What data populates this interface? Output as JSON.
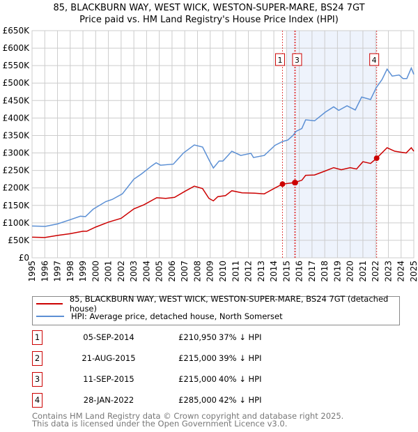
{
  "chart_data": {
    "type": "line",
    "title": "85, BLACKBURN WAY, WEST WICK, WESTON-SUPER-MARE, BS24 7GT",
    "subtitle": "Price paid vs. HM Land Registry's House Price Index (HPI)",
    "xlim": [
      1995,
      2025
    ],
    "ylim": [
      0,
      650000
    ],
    "x_ticks": [
      "1995",
      "1996",
      "1997",
      "1998",
      "1999",
      "2000",
      "2001",
      "2002",
      "2003",
      "2004",
      "2005",
      "2006",
      "2007",
      "2008",
      "2009",
      "2010",
      "2011",
      "2012",
      "2013",
      "2014",
      "2015",
      "2016",
      "2017",
      "2018",
      "2019",
      "2020",
      "2021",
      "2022",
      "2023",
      "2024",
      "2025"
    ],
    "y_ticks": [
      "£0",
      "£50K",
      "£100K",
      "£150K",
      "£200K",
      "£250K",
      "£300K",
      "£350K",
      "£400K",
      "£450K",
      "£500K",
      "£550K",
      "£600K",
      "£650K"
    ],
    "grid": true,
    "series": [
      {
        "name": "85, BLACKBURN WAY, WEST WICK, WESTON-SUPER-MARE, BS24 7GT (detached house)",
        "color": "#cc0000",
        "x": [
          1995,
          1996,
          1997,
          1998,
          1999,
          1999.3,
          2000,
          2001,
          2002,
          2003,
          2003.8,
          2004.8,
          2005.5,
          2006.2,
          2007,
          2007.75,
          2008.4,
          2008.9,
          2009.25,
          2009.6,
          2010.2,
          2010.7,
          2011.5,
          2012.5,
          2013.25,
          2014.1,
          2014.68,
          2015.6,
          2016.2,
          2016.5,
          2017.2,
          2018,
          2018.7,
          2019.3,
          2020,
          2020.5,
          2021,
          2021.6,
          2022.08,
          2022.9,
          2023.5,
          2024,
          2024.4,
          2024.8,
          2025
        ],
        "y": [
          59000,
          58000,
          64000,
          69000,
          76000,
          76000,
          88000,
          102000,
          113000,
          140000,
          152000,
          172000,
          170000,
          173000,
          190000,
          205000,
          198000,
          170000,
          163000,
          175000,
          178000,
          192000,
          186000,
          185000,
          183000,
          200000,
          211000,
          215000,
          222000,
          236000,
          237000,
          248000,
          258000,
          252000,
          258000,
          254000,
          275000,
          270000,
          285000,
          315000,
          305000,
          302000,
          300000,
          315000,
          305000
        ]
      },
      {
        "name": "HPI: Average price, detached house, North Somerset",
        "color": "#5b8fd4",
        "x": [
          1995,
          1996.05,
          1997,
          1998,
          1998.8,
          1999.2,
          1999.8,
          2000.8,
          2001.3,
          2002.1,
          2003,
          2003.6,
          2004.4,
          2004.75,
          2005.1,
          2006.1,
          2006.9,
          2007.75,
          2008.4,
          2008.95,
          2009.25,
          2009.7,
          2010,
          2010.7,
          2011.4,
          2012.2,
          2012.4,
          2013.25,
          2014.1,
          2014.7,
          2015.1,
          2015.5,
          2015.75,
          2016.2,
          2016.5,
          2017.2,
          2018.05,
          2018.7,
          2019.1,
          2019.75,
          2020.4,
          2020.9,
          2021.6,
          2022.05,
          2022.5,
          2022.9,
          2023.3,
          2023.85,
          2024.15,
          2024.45,
          2024.8,
          2025
        ],
        "y": [
          91000,
          90000,
          97000,
          109000,
          119000,
          118000,
          139000,
          161000,
          167000,
          183000,
          225000,
          240000,
          263000,
          272000,
          265000,
          268000,
          300000,
          323000,
          317000,
          277000,
          257000,
          277000,
          277000,
          305000,
          293000,
          299000,
          287000,
          293000,
          322000,
          333000,
          337000,
          350000,
          362000,
          370000,
          395000,
          392000,
          417000,
          432000,
          422000,
          435000,
          423000,
          460000,
          453000,
          487000,
          510000,
          540000,
          520000,
          523000,
          513000,
          513000,
          543000,
          525000
        ]
      }
    ],
    "sales": [
      {
        "id": "1",
        "x": 2014.68,
        "price": 210950
      },
      {
        "id": "2",
        "x": 2015.64,
        "price": 215000
      },
      {
        "id": "3",
        "x": 2015.69,
        "price": 215000
      },
      {
        "id": "4",
        "x": 2022.08,
        "price": 285000
      }
    ],
    "marker_labels_shown": [
      "1",
      "3",
      "4"
    ],
    "shaded_range": [
      2015.0,
      2022.08
    ]
  },
  "legend": {
    "property": "85, BLACKBURN WAY, WEST WICK, WESTON-SUPER-MARE, BS24 7GT (detached house)",
    "hpi": "HPI: Average price, detached house, North Somerset"
  },
  "transactions": [
    {
      "num": "1",
      "date": "05-SEP-2014",
      "price": "£210,950",
      "pct": "37% ↓ HPI"
    },
    {
      "num": "2",
      "date": "21-AUG-2015",
      "price": "£215,000",
      "pct": "39% ↓ HPI"
    },
    {
      "num": "3",
      "date": "11-SEP-2015",
      "price": "£215,000",
      "pct": "40% ↓ HPI"
    },
    {
      "num": "4",
      "date": "28-JAN-2022",
      "price": "£285,000",
      "pct": "42% ↓ HPI"
    }
  ],
  "footer": {
    "line1": "Contains HM Land Registry data © Crown copyright and database right 2025.",
    "line2": "This data is licensed under the Open Government Licence v3.0."
  }
}
